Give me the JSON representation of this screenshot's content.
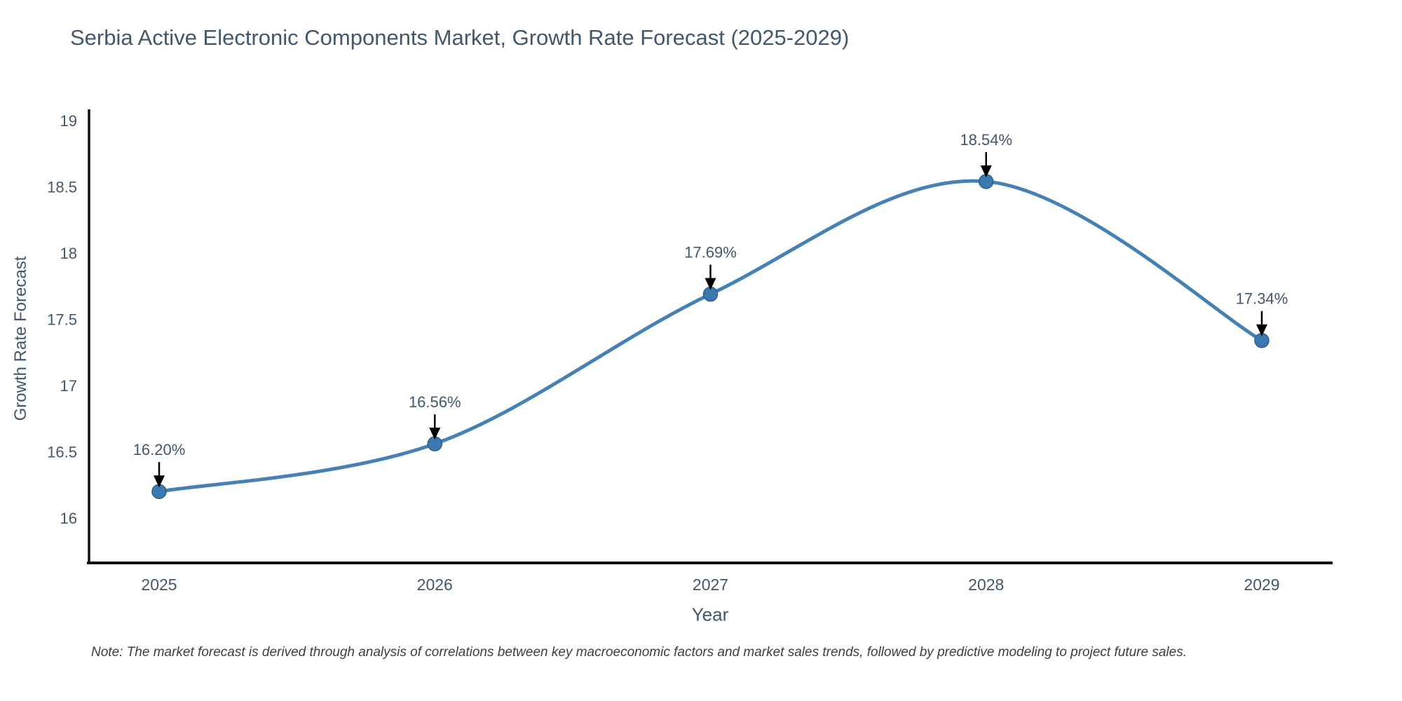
{
  "page": {
    "background": "#ffffff"
  },
  "chart_data": {
    "type": "line",
    "title": "Serbia Active Electronic Components Market, Growth Rate Forecast (2025-2029)",
    "xlabel": "Year",
    "ylabel": "Growth Rate Forecast",
    "categories": [
      "2025",
      "2026",
      "2027",
      "2028",
      "2029"
    ],
    "values": [
      16.2,
      16.56,
      17.69,
      18.54,
      17.34
    ],
    "point_labels": [
      "16.20%",
      "16.56%",
      "17.69%",
      "18.54%",
      "17.34%"
    ],
    "ytick_labels": [
      "16",
      "16.5",
      "17",
      "17.5",
      "18",
      "18.5",
      "19"
    ],
    "ytick_values": [
      16,
      16.5,
      17,
      17.5,
      18,
      18.5,
      19
    ],
    "ylim": [
      15.66,
      19.08
    ],
    "line_shape": "spline",
    "grid": false,
    "legend_position": "none",
    "colors": {
      "line": "#4581b5",
      "marker": "#3c79b1",
      "marker_edge": "#2d5f8e",
      "axis": "#111111",
      "tick_text": "#42576b",
      "annotation_text": "#42576b",
      "annotation_arrow": "#000000"
    },
    "note": "Note: The market forecast is derived through analysis of correlations between key macroeconomic factors and market sales trends, followed by predictive modeling to project future sales."
  }
}
